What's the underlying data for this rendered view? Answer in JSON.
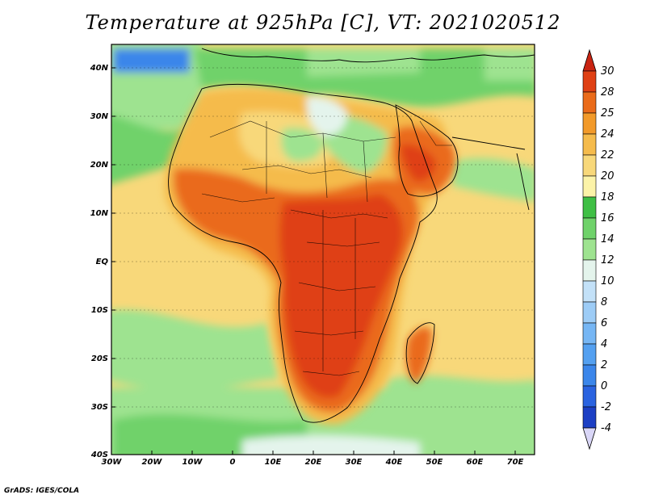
{
  "title": "Temperature at 925hPa [C], VT: 2021020512",
  "credit": "GrADS: IGES/COLA",
  "map": {
    "lon_ticks": [
      "30W",
      "20W",
      "10W",
      "0",
      "10E",
      "20E",
      "30E",
      "40E",
      "50E",
      "60E",
      "70E"
    ],
    "lat_ticks": [
      "40N",
      "30N",
      "20N",
      "10N",
      "EQ",
      "10S",
      "20S",
      "30S",
      "40S"
    ]
  },
  "colorbar": {
    "levels": [
      "-4",
      "-2",
      "0",
      "2",
      "4",
      "6",
      "8",
      "10",
      "12",
      "14",
      "16",
      "18",
      "20",
      "22",
      "24",
      "25",
      "28",
      "30"
    ],
    "colors": [
      "#11128c",
      "#1c3fc4",
      "#2a63e0",
      "#3b86ea",
      "#54a0f0",
      "#76b6f4",
      "#9dccf6",
      "#c3e1f8",
      "#e4f4ec",
      "#9ee390",
      "#6fd26a",
      "#3fbf45",
      "#fcf3a8",
      "#f8d87a",
      "#f5bb4c",
      "#f29a2a",
      "#ea6b1a",
      "#df4014",
      "#c92412"
    ]
  }
}
